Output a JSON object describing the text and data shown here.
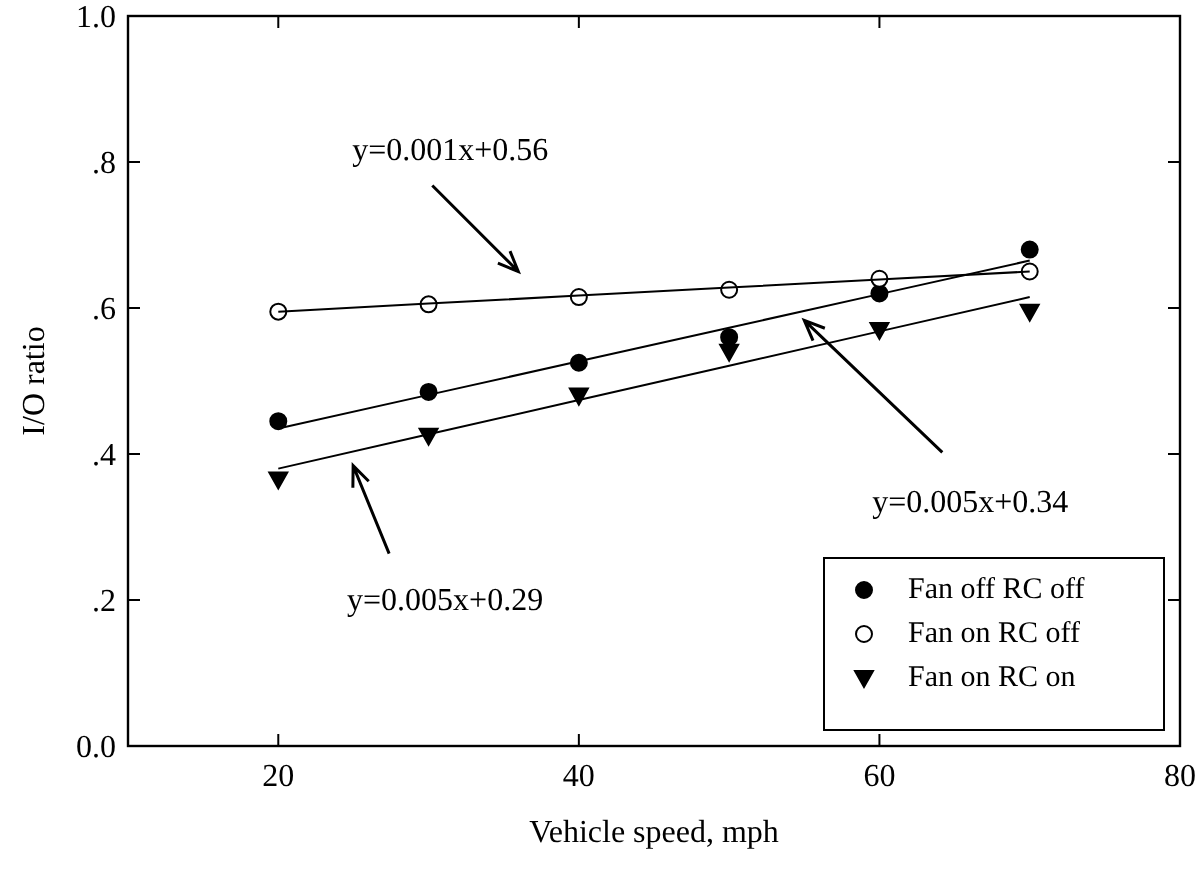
{
  "chart_data": {
    "type": "scatter",
    "xlabel": "Vehicle speed, mph",
    "ylabel": "I/O ratio",
    "x": [
      20,
      30,
      40,
      50,
      60,
      70
    ],
    "xlim": [
      10,
      80
    ],
    "xticks": [
      20,
      40,
      60,
      80
    ],
    "ylim": [
      0,
      1
    ],
    "yticks": [
      {
        "value": 0,
        "label": "0.0"
      },
      {
        "value": 0.2,
        "label": ".2"
      },
      {
        "value": 0.4,
        "label": ".4"
      },
      {
        "value": 0.6,
        "label": ".6"
      },
      {
        "value": 0.8,
        "label": ".8"
      },
      {
        "value": 1,
        "label": "1.0"
      }
    ],
    "legend": "bottom right",
    "grid": false,
    "series": [
      {
        "name": "Fan off RC off",
        "color": "#000000",
        "marker": "circle",
        "values": [
          0.445,
          0.485,
          0.525,
          0.56,
          0.62,
          0.68
        ]
      },
      {
        "name": "Fan on RC off",
        "color": "#ffffff",
        "marker": "circle",
        "values": [
          0.595,
          0.605,
          0.615,
          0.625,
          0.64,
          0.65
        ]
      },
      {
        "name": "Fan on RC on",
        "color": "#000000",
        "marker": "triangle",
        "values": [
          0.365,
          0.425,
          0.48,
          0.54,
          0.57,
          0.595
        ]
      },
      {
        "type": "line",
        "color": "#000000",
        "values": [
          0.595,
          0.606,
          0.617,
          0.628,
          0.639,
          0.65
        ]
      },
      {
        "type": "line",
        "color": "#000000",
        "values": [
          0.435,
          0.481,
          0.527,
          0.573,
          0.619,
          0.665
        ]
      },
      {
        "type": "line",
        "color": "#000000",
        "values": [
          0.38,
          0.427,
          0.474,
          0.521,
          0.568,
          0.615
        ]
      }
    ],
    "annotations": [
      "y=0.001x+0.56",
      {
        "text": "y=0.005x+0.34",
        "x": 55,
        "y": 0.583
      },
      "y=0.005x+0.29"
    ]
  }
}
